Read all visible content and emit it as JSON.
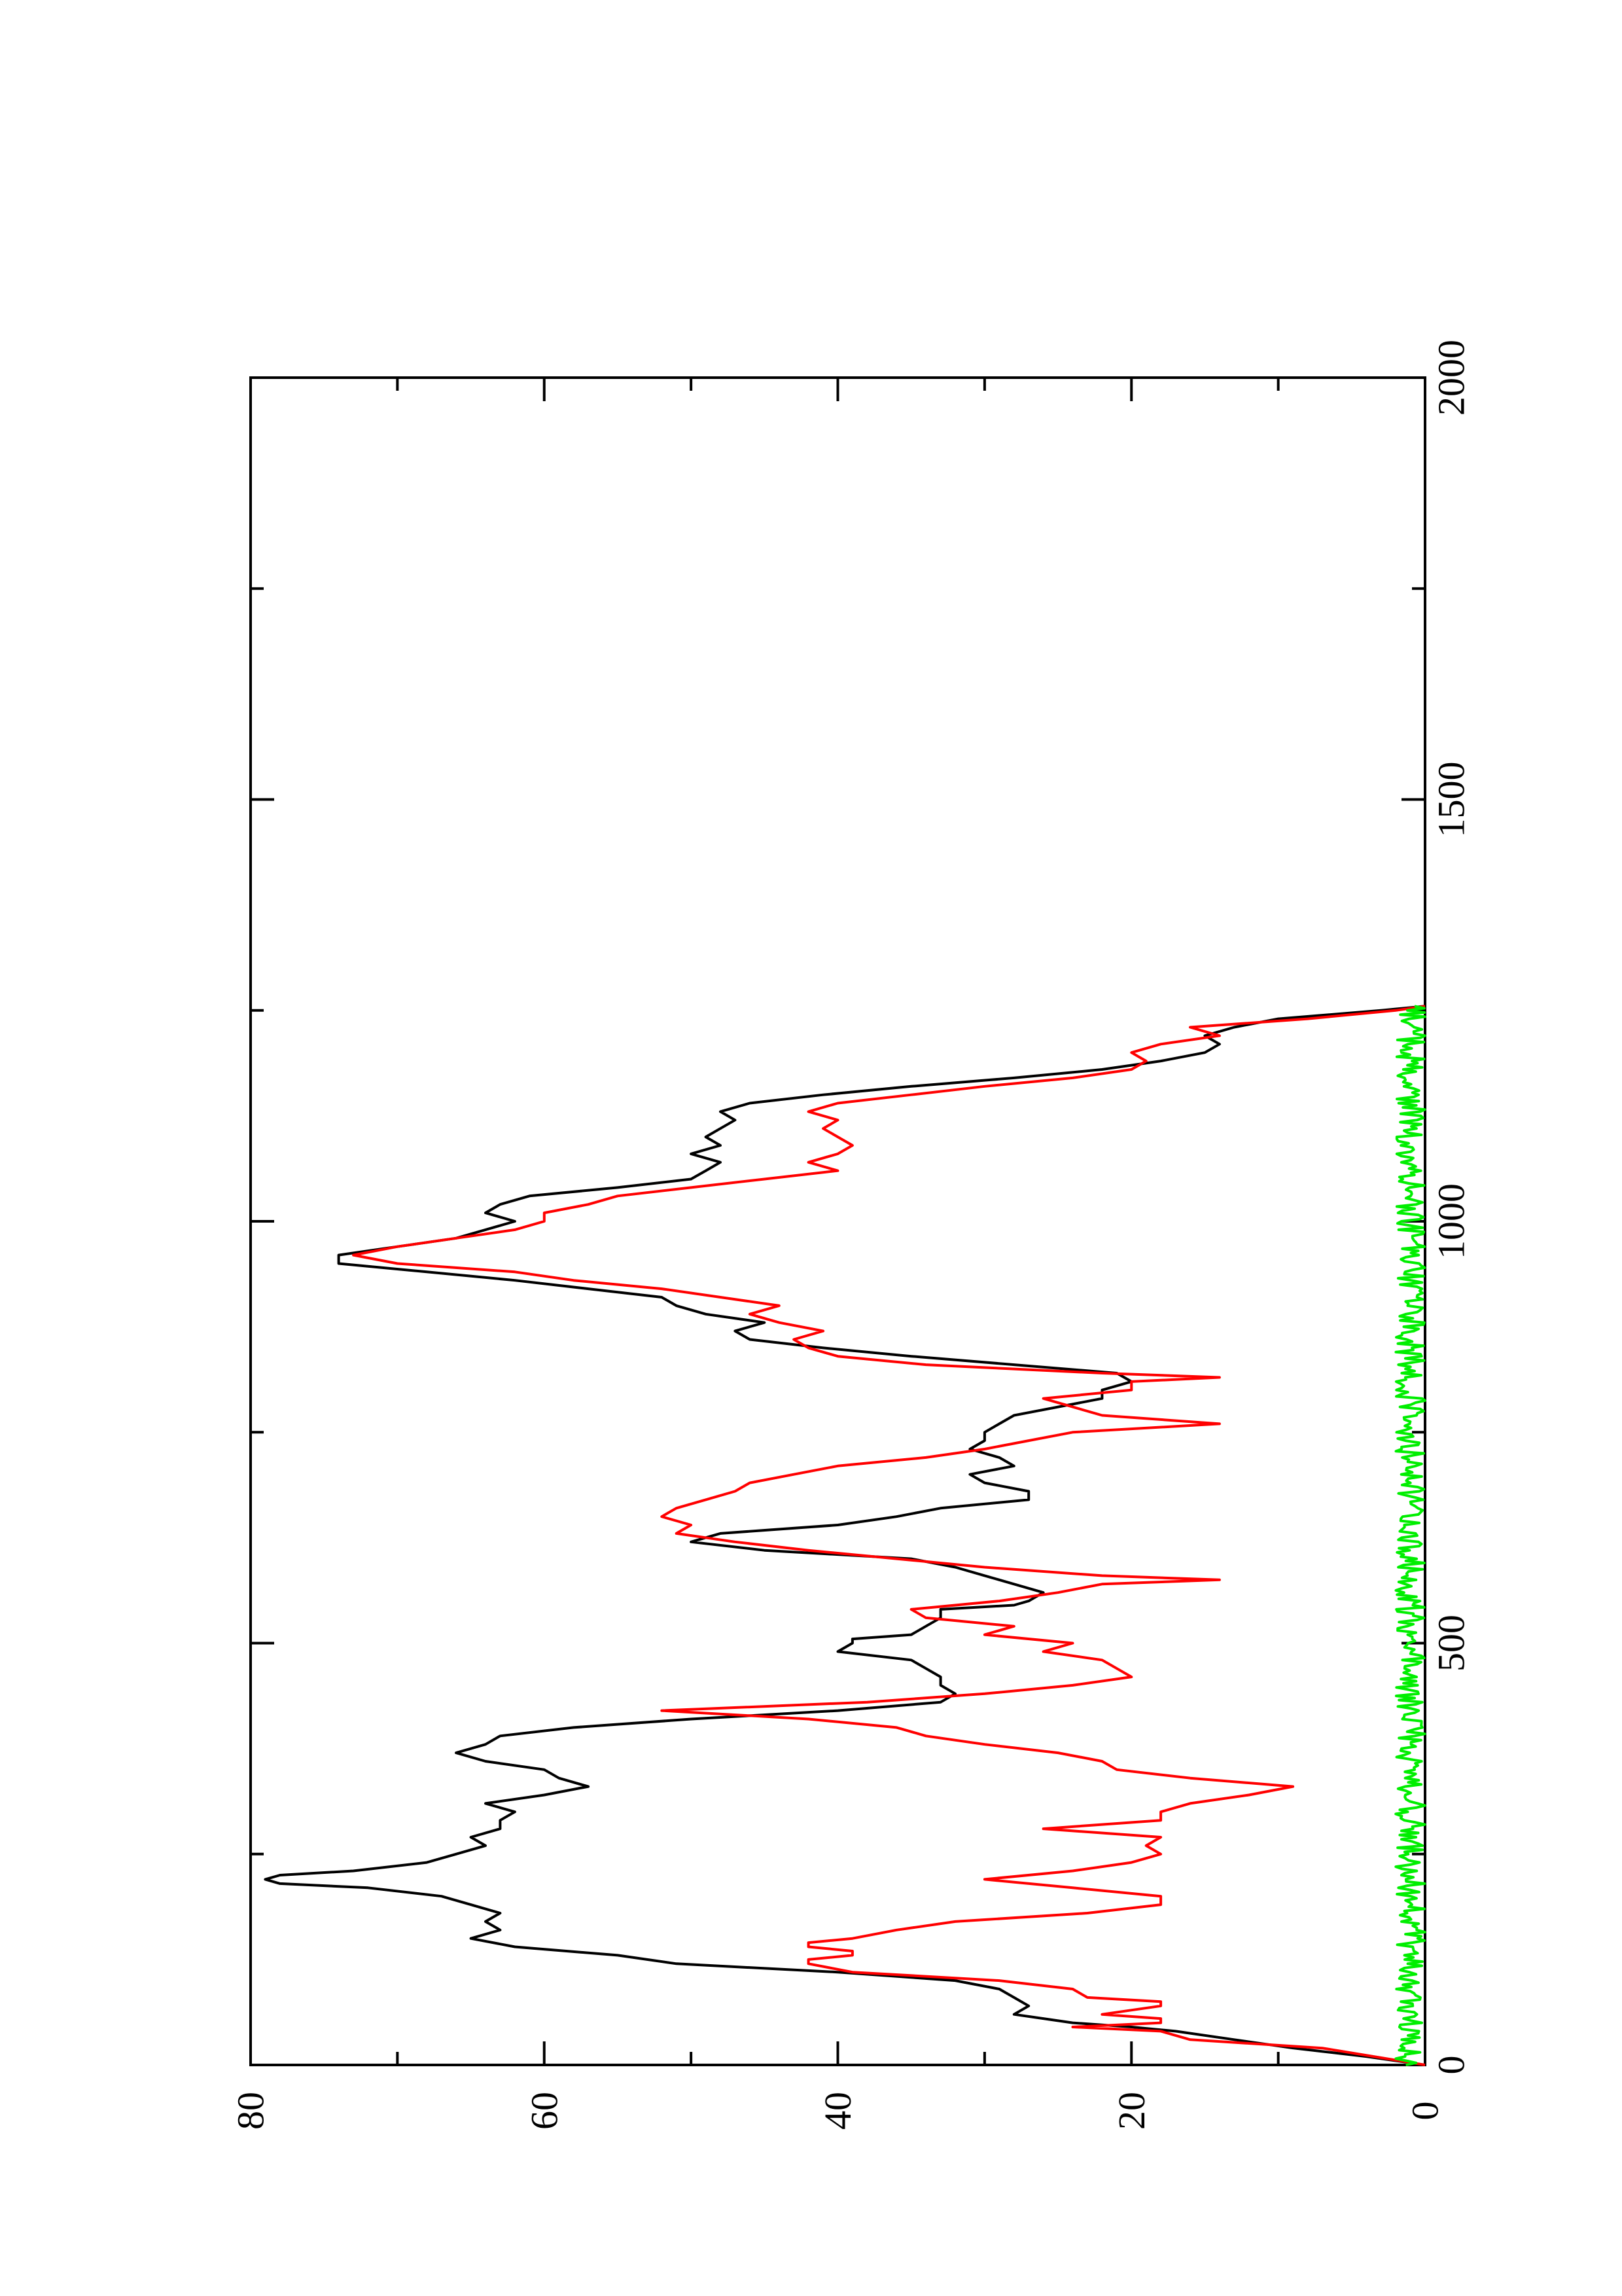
{
  "chart_data": {
    "type": "line",
    "orientation": "rotated-90-ccw",
    "title": "",
    "xlabel": "",
    "ylabel": "",
    "xlim": [
      0,
      2000
    ],
    "ylim": [
      0,
      80
    ],
    "grid": false,
    "legend": "none",
    "x_ticks": [
      {
        "value": 0,
        "label": "0"
      },
      {
        "value": 500,
        "label": "500"
      },
      {
        "value": 1000,
        "label": "1000"
      },
      {
        "value": 1500,
        "label": "1500"
      },
      {
        "value": 2000,
        "label": "2000"
      }
    ],
    "y_ticks": [
      {
        "value": 0,
        "label": "0"
      },
      {
        "value": 20,
        "label": "20"
      },
      {
        "value": 40,
        "label": "40"
      },
      {
        "value": 60,
        "label": "60"
      },
      {
        "value": 80,
        "label": "80"
      }
    ],
    "series": [
      {
        "color": "#000000",
        "points": [
          [
            0,
            0
          ],
          [
            10,
            4
          ],
          [
            20,
            9
          ],
          [
            30,
            13
          ],
          [
            40,
            17
          ],
          [
            45,
            20
          ],
          [
            50,
            24
          ],
          [
            55,
            26
          ],
          [
            60,
            28
          ],
          [
            70,
            27
          ],
          [
            80,
            28
          ],
          [
            90,
            29
          ],
          [
            100,
            32
          ],
          [
            110,
            40
          ],
          [
            120,
            51
          ],
          [
            130,
            55
          ],
          [
            140,
            62
          ],
          [
            150,
            65
          ],
          [
            160,
            63
          ],
          [
            170,
            64
          ],
          [
            180,
            63
          ],
          [
            190,
            65
          ],
          [
            200,
            67
          ],
          [
            210,
            72
          ],
          [
            215,
            78
          ],
          [
            220,
            79
          ],
          [
            225,
            78
          ],
          [
            230,
            73
          ],
          [
            240,
            68
          ],
          [
            250,
            66
          ],
          [
            260,
            64
          ],
          [
            270,
            65
          ],
          [
            280,
            63
          ],
          [
            290,
            63
          ],
          [
            300,
            62
          ],
          [
            310,
            64
          ],
          [
            320,
            60
          ],
          [
            330,
            57
          ],
          [
            340,
            59
          ],
          [
            350,
            60
          ],
          [
            360,
            64
          ],
          [
            370,
            66
          ],
          [
            380,
            64
          ],
          [
            390,
            63
          ],
          [
            400,
            58
          ],
          [
            410,
            50
          ],
          [
            420,
            40
          ],
          [
            430,
            33
          ],
          [
            440,
            32
          ],
          [
            450,
            33
          ],
          [
            460,
            33
          ],
          [
            470,
            34
          ],
          [
            480,
            35
          ],
          [
            490,
            40
          ],
          [
            500,
            39
          ],
          [
            505,
            39
          ],
          [
            510,
            35
          ],
          [
            520,
            34
          ],
          [
            530,
            33
          ],
          [
            540,
            33
          ],
          [
            545,
            28
          ],
          [
            550,
            27
          ],
          [
            560,
            26
          ],
          [
            570,
            28
          ],
          [
            580,
            30
          ],
          [
            590,
            32
          ],
          [
            600,
            35
          ],
          [
            610,
            45
          ],
          [
            620,
            50
          ],
          [
            630,
            48
          ],
          [
            640,
            40
          ],
          [
            650,
            36
          ],
          [
            660,
            33
          ],
          [
            670,
            27
          ],
          [
            680,
            27
          ],
          [
            690,
            30
          ],
          [
            700,
            31
          ],
          [
            710,
            28
          ],
          [
            720,
            29
          ],
          [
            730,
            31
          ],
          [
            740,
            30
          ],
          [
            750,
            30
          ],
          [
            760,
            29
          ],
          [
            770,
            28
          ],
          [
            780,
            25
          ],
          [
            790,
            22
          ],
          [
            800,
            22
          ],
          [
            810,
            20
          ],
          [
            820,
            21
          ],
          [
            830,
            28
          ],
          [
            840,
            35
          ],
          [
            850,
            41
          ],
          [
            860,
            46
          ],
          [
            870,
            47
          ],
          [
            880,
            45
          ],
          [
            890,
            49
          ],
          [
            900,
            51
          ],
          [
            910,
            52
          ],
          [
            920,
            57
          ],
          [
            930,
            62
          ],
          [
            940,
            68
          ],
          [
            950,
            74
          ],
          [
            960,
            74
          ],
          [
            970,
            70
          ],
          [
            980,
            66
          ],
          [
            990,
            64
          ],
          [
            1000,
            62
          ],
          [
            1010,
            64
          ],
          [
            1020,
            63
          ],
          [
            1030,
            61
          ],
          [
            1040,
            55
          ],
          [
            1050,
            50
          ],
          [
            1060,
            49
          ],
          [
            1070,
            48
          ],
          [
            1080,
            50
          ],
          [
            1090,
            48
          ],
          [
            1100,
            49
          ],
          [
            1110,
            48
          ],
          [
            1120,
            47
          ],
          [
            1130,
            48
          ],
          [
            1140,
            46
          ],
          [
            1150,
            41
          ],
          [
            1160,
            35
          ],
          [
            1170,
            28
          ],
          [
            1180,
            22
          ],
          [
            1190,
            18
          ],
          [
            1200,
            15
          ],
          [
            1210,
            14
          ],
          [
            1220,
            15
          ],
          [
            1230,
            13
          ],
          [
            1240,
            10
          ],
          [
            1250,
            3
          ],
          [
            1255,
            0
          ]
        ]
      },
      {
        "color": "#ff0000",
        "points": [
          [
            0,
            0
          ],
          [
            20,
            7
          ],
          [
            30,
            16
          ],
          [
            40,
            18
          ],
          [
            45,
            24
          ],
          [
            50,
            18
          ],
          [
            55,
            18
          ],
          [
            60,
            22
          ],
          [
            70,
            18
          ],
          [
            75,
            18
          ],
          [
            80,
            23
          ],
          [
            90,
            24
          ],
          [
            100,
            29
          ],
          [
            110,
            39
          ],
          [
            120,
            42
          ],
          [
            125,
            42
          ],
          [
            130,
            39
          ],
          [
            135,
            39
          ],
          [
            140,
            42
          ],
          [
            145,
            42
          ],
          [
            150,
            39
          ],
          [
            160,
            36
          ],
          [
            170,
            32
          ],
          [
            180,
            23
          ],
          [
            190,
            18
          ],
          [
            200,
            18
          ],
          [
            210,
            24
          ],
          [
            220,
            30
          ],
          [
            230,
            24
          ],
          [
            240,
            20
          ],
          [
            250,
            18
          ],
          [
            260,
            19
          ],
          [
            270,
            18
          ],
          [
            280,
            26
          ],
          [
            290,
            18
          ],
          [
            300,
            18
          ],
          [
            310,
            16
          ],
          [
            320,
            12
          ],
          [
            330,
            9
          ],
          [
            340,
            16
          ],
          [
            350,
            21
          ],
          [
            360,
            22
          ],
          [
            370,
            25
          ],
          [
            380,
            30
          ],
          [
            390,
            34
          ],
          [
            400,
            36
          ],
          [
            410,
            42
          ],
          [
            420,
            52
          ],
          [
            430,
            38
          ],
          [
            440,
            30
          ],
          [
            450,
            24
          ],
          [
            460,
            20
          ],
          [
            470,
            21
          ],
          [
            480,
            22
          ],
          [
            490,
            26
          ],
          [
            500,
            24
          ],
          [
            510,
            30
          ],
          [
            520,
            28
          ],
          [
            530,
            34
          ],
          [
            540,
            35
          ],
          [
            550,
            29
          ],
          [
            560,
            25
          ],
          [
            570,
            22
          ],
          [
            575,
            14
          ],
          [
            580,
            22
          ],
          [
            590,
            30
          ],
          [
            600,
            36
          ],
          [
            610,
            42
          ],
          [
            620,
            47
          ],
          [
            630,
            51
          ],
          [
            640,
            50
          ],
          [
            650,
            52
          ],
          [
            660,
            51
          ],
          [
            670,
            49
          ],
          [
            680,
            47
          ],
          [
            690,
            46
          ],
          [
            700,
            43
          ],
          [
            710,
            40
          ],
          [
            720,
            34
          ],
          [
            730,
            30
          ],
          [
            740,
            27
          ],
          [
            750,
            24
          ],
          [
            760,
            14
          ],
          [
            770,
            22
          ],
          [
            780,
            24
          ],
          [
            790,
            26
          ],
          [
            800,
            20
          ],
          [
            810,
            20
          ],
          [
            815,
            14
          ],
          [
            820,
            22
          ],
          [
            830,
            34
          ],
          [
            840,
            40
          ],
          [
            850,
            42
          ],
          [
            860,
            43
          ],
          [
            870,
            41
          ],
          [
            880,
            44
          ],
          [
            890,
            46
          ],
          [
            900,
            44
          ],
          [
            910,
            48
          ],
          [
            920,
            52
          ],
          [
            930,
            58
          ],
          [
            940,
            62
          ],
          [
            950,
            70
          ],
          [
            960,
            73
          ],
          [
            970,
            70
          ],
          [
            980,
            66
          ],
          [
            990,
            62
          ],
          [
            1000,
            60
          ],
          [
            1010,
            60
          ],
          [
            1020,
            57
          ],
          [
            1030,
            55
          ],
          [
            1040,
            50
          ],
          [
            1050,
            45
          ],
          [
            1060,
            40
          ],
          [
            1070,
            42
          ],
          [
            1080,
            40
          ],
          [
            1090,
            39
          ],
          [
            1100,
            40
          ],
          [
            1110,
            41
          ],
          [
            1120,
            40
          ],
          [
            1130,
            42
          ],
          [
            1140,
            40
          ],
          [
            1150,
            35
          ],
          [
            1160,
            30
          ],
          [
            1170,
            24
          ],
          [
            1180,
            20
          ],
          [
            1190,
            19
          ],
          [
            1200,
            20
          ],
          [
            1210,
            18
          ],
          [
            1220,
            14
          ],
          [
            1230,
            16
          ],
          [
            1240,
            8
          ],
          [
            1250,
            2
          ],
          [
            1255,
            0
          ]
        ]
      },
      {
        "color": "#00ee00",
        "style": "noise",
        "x_range": [
          0,
          1255
        ],
        "y_range": [
          0,
          2
        ]
      }
    ]
  }
}
